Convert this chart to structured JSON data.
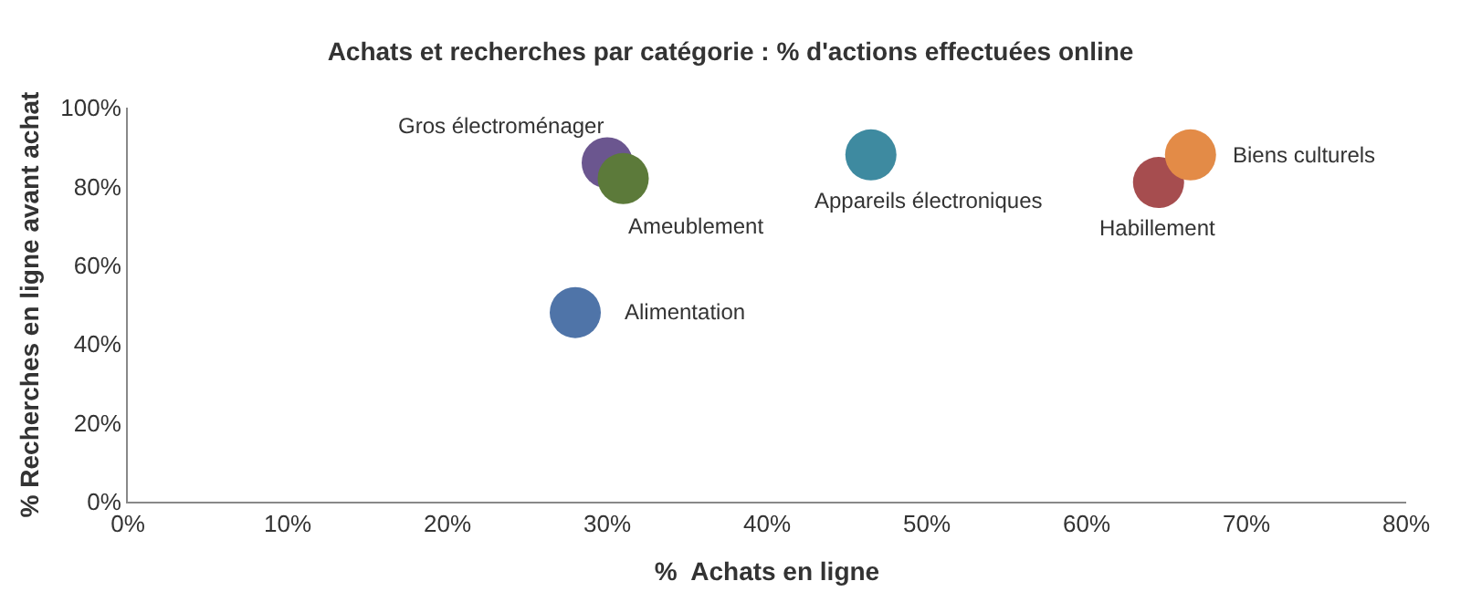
{
  "chart_data": {
    "type": "scatter",
    "title": "Achats et recherches par catégorie : % d'actions effectuées online",
    "xlabel": "%  Achats en ligne",
    "ylabel": "% Recherches en ligne avant achat",
    "x": [
      30,
      31,
      28,
      46.5,
      64.5,
      66.5
    ],
    "values": [
      86,
      82,
      48,
      88,
      81,
      88
    ],
    "colors": [
      "#6b568f",
      "#5c7a3a",
      "#4f74a8",
      "#3e8aa0",
      "#a64d4f",
      "#e38b47"
    ],
    "annotations": [
      {
        "text": "Gros électroménager",
        "x": 30,
        "y": 86
      },
      {
        "text": "Ameublement",
        "x": 31,
        "y": 82
      },
      {
        "text": "Alimentation",
        "x": 28,
        "y": 48
      },
      {
        "text": "Appareils électroniques",
        "x": 46.5,
        "y": 88
      },
      {
        "text": "Habillement",
        "x": 64.5,
        "y": 81
      },
      {
        "text": "Biens culturels",
        "x": 66.5,
        "y": 88
      }
    ],
    "xlim": [
      0,
      80
    ],
    "ylim": [
      0,
      100
    ],
    "xticks": [
      {
        "value": 0,
        "label": "0%"
      },
      {
        "value": 10,
        "label": "10%"
      },
      {
        "value": 20,
        "label": "20%"
      },
      {
        "value": 30,
        "label": "30%"
      },
      {
        "value": 40,
        "label": "40%"
      },
      {
        "value": 50,
        "label": "50%"
      },
      {
        "value": 60,
        "label": "60%"
      },
      {
        "value": 70,
        "label": "70%"
      },
      {
        "value": 80,
        "label": "80%"
      }
    ],
    "yticks": [
      {
        "value": 0,
        "label": "0%"
      },
      {
        "value": 20,
        "label": "20%"
      },
      {
        "value": 40,
        "label": "40%"
      },
      {
        "value": 60,
        "label": "60%"
      },
      {
        "value": 80,
        "label": "80%"
      },
      {
        "value": 100,
        "label": "100%"
      }
    ],
    "grid": false,
    "marker": "circle"
  }
}
